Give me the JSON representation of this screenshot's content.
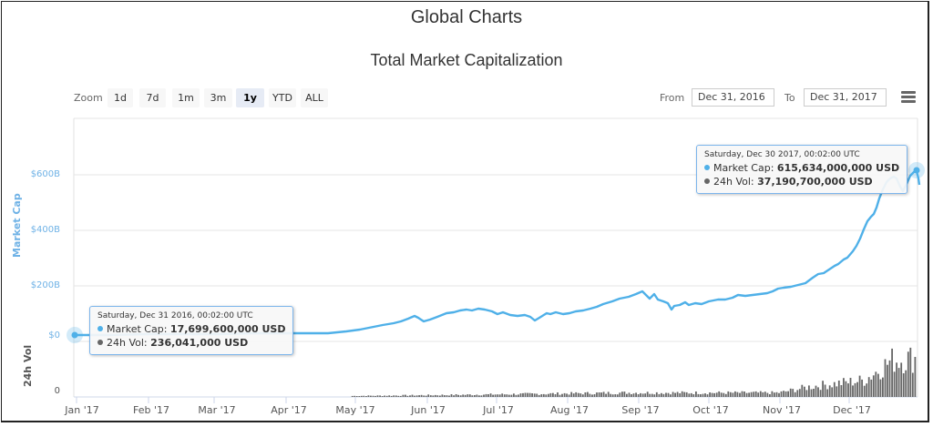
{
  "header": {
    "title": "Global Charts",
    "subtitle": "Total Market Capitalization"
  },
  "toolbar": {
    "zoom_label": "Zoom",
    "zoom_buttons": [
      {
        "label": "1d",
        "active": false
      },
      {
        "label": "7d",
        "active": false
      },
      {
        "label": "1m",
        "active": false
      },
      {
        "label": "3m",
        "active": false
      },
      {
        "label": "1y",
        "active": true
      },
      {
        "label": "YTD",
        "active": false
      },
      {
        "label": "ALL",
        "active": false
      }
    ],
    "from_label": "From",
    "from_value": "Dec 31, 2016",
    "to_label": "To",
    "to_value": "Dec 31, 2017",
    "menu_icon": "hamburger-menu-icon"
  },
  "colors": {
    "line": "#4fb0e8",
    "axis_label": "#6fb2e6",
    "volume_bar": "#666666",
    "grid": "#e6e6e6",
    "tooltip_border": "#7cb5ec"
  },
  "tooltips": [
    {
      "date": "Saturday, Dec 31 2016, 00:02:00 UTC",
      "market_cap_label": "Market Cap:",
      "market_cap_value": "17,699,600,000 USD",
      "vol_label": "24h Vol:",
      "vol_value": "236,041,000 USD"
    },
    {
      "date": "Saturday, Dec 30 2017, 00:02:00 UTC",
      "market_cap_label": "Market Cap:",
      "market_cap_value": "615,634,000,000 USD",
      "vol_label": "24h Vol:",
      "vol_value": "37,190,700,000 USD"
    }
  ],
  "chart_data": {
    "type": "line",
    "title": "Total Market Capitalization",
    "xlabel": "",
    "ylabel": "Market Cap",
    "secondary_ylabel": "24h Vol",
    "y_ticks": [
      "$0",
      "$200B",
      "$400B",
      "$600B"
    ],
    "vol_ticks": [
      "0"
    ],
    "x_ticks": [
      "Jan '17",
      "Feb '17",
      "Mar '17",
      "Apr '17",
      "May '17",
      "Jun '17",
      "Jul '17",
      "Aug '17",
      "Sep '17",
      "Oct '17",
      "Nov '17",
      "Dec '17"
    ],
    "ylim": [
      0,
      700
    ],
    "grid": true,
    "legend": "none",
    "series": [
      {
        "name": "Market Cap (USD billions)",
        "x": [
          "2016-12-31",
          "2017-02-01",
          "2017-03-01",
          "2017-04-01",
          "2017-05-01",
          "2017-05-15",
          "2017-05-25",
          "2017-06-01",
          "2017-06-15",
          "2017-07-01",
          "2017-07-16",
          "2017-08-01",
          "2017-08-15",
          "2017-09-01",
          "2017-09-05",
          "2017-09-15",
          "2017-10-01",
          "2017-10-15",
          "2017-11-01",
          "2017-11-15",
          "2017-12-01",
          "2017-12-08",
          "2017-12-15",
          "2017-12-21",
          "2017-12-25",
          "2017-12-30"
        ],
        "values": [
          17.7,
          19,
          22,
          28,
          40,
          76,
          90,
          105,
          115,
          102,
          85,
          108,
          155,
          175,
          150,
          115,
          145,
          160,
          170,
          210,
          270,
          330,
          440,
          610,
          550,
          615.6
        ]
      },
      {
        "name": "24h Vol (USD billions)",
        "x": [
          "2016-12-31",
          "2017-05-01",
          "2017-06-15",
          "2017-08-25",
          "2017-11-01",
          "2017-11-15",
          "2017-12-08",
          "2017-12-20",
          "2017-12-30"
        ],
        "values": [
          0.24,
          1,
          2,
          4,
          4,
          10,
          16,
          35,
          37.2
        ]
      }
    ]
  }
}
